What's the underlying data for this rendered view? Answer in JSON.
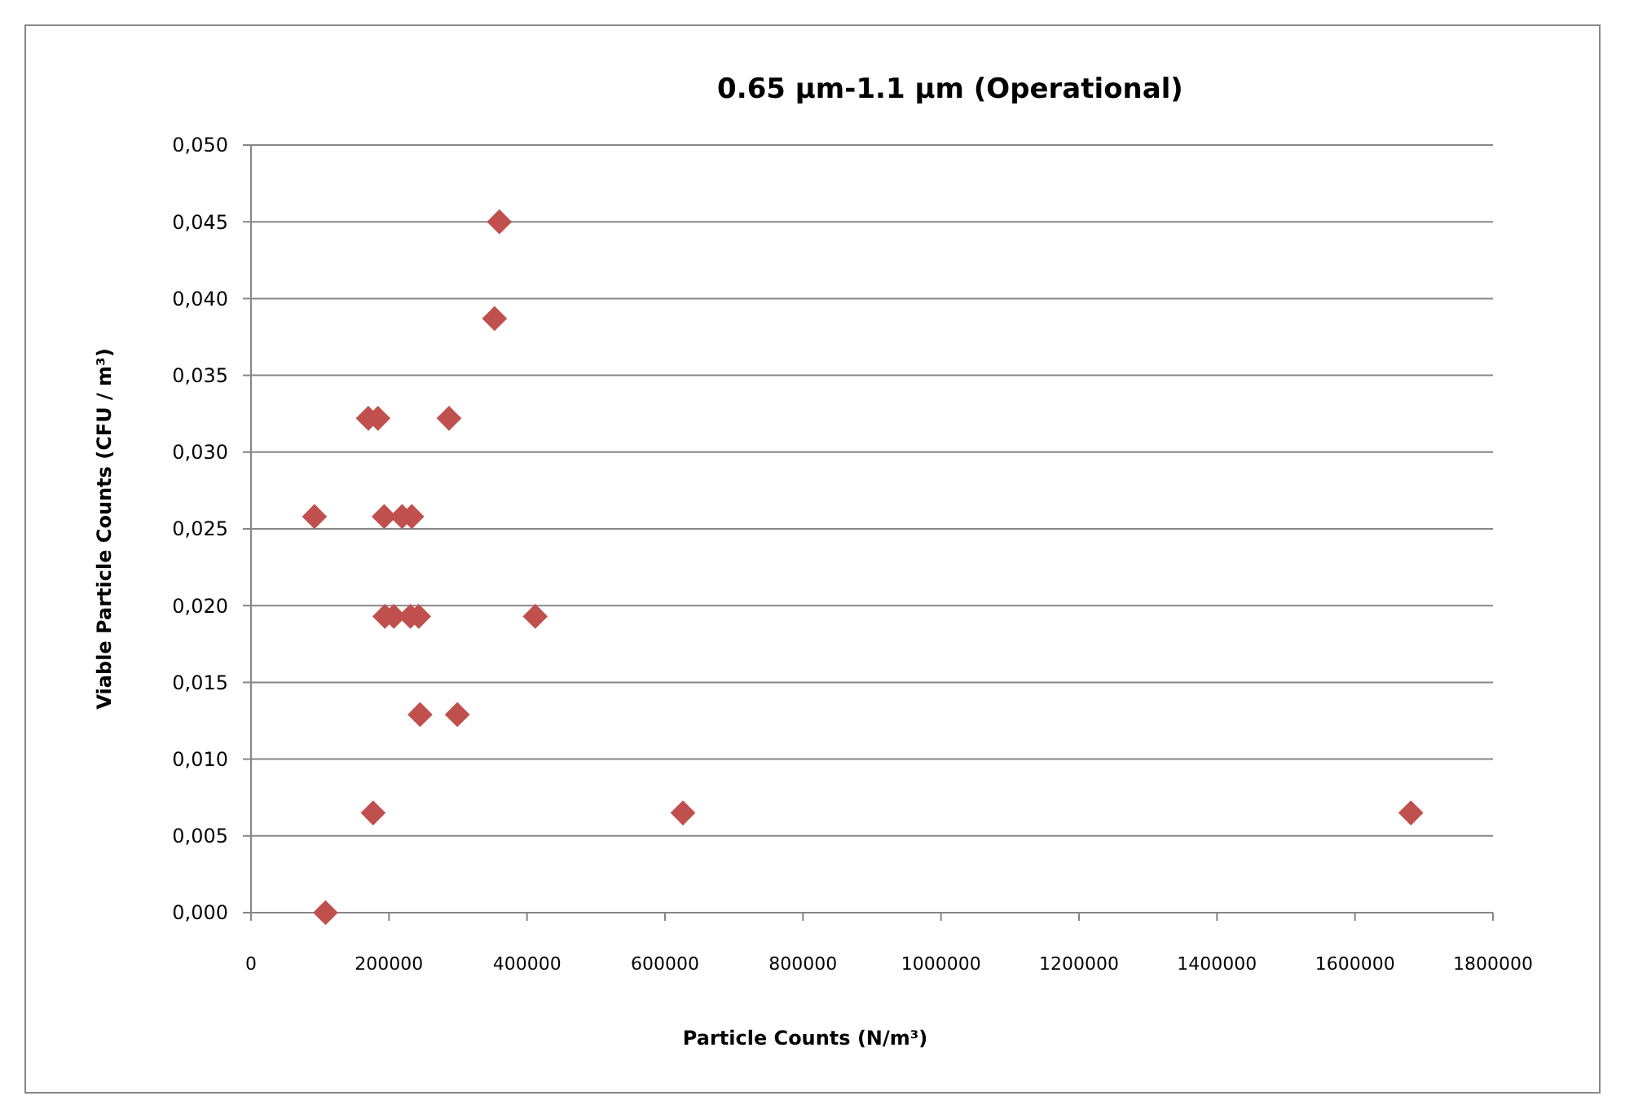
{
  "chart_data": {
    "type": "scatter",
    "title": "0.65 µm-1.1 µm (Operational)",
    "xlabel": "Particle Counts (N/m³)",
    "ylabel": "Viable Particle Counts (CFU / m³)",
    "series": [
      {
        "color": "#c0504d",
        "x": [
          92000,
          108000,
          177000,
          170000,
          184000,
          287000,
          193000,
          219000,
          360000,
          353000,
          194000,
          207000,
          231000,
          243000,
          412000,
          245000,
          299000,
          626000,
          1681000,
          233000
        ],
        "values": [
          0.0258,
          0,
          0.0065,
          0.0322,
          0.0322,
          0.0322,
          0.0258,
          0.0258,
          0.045,
          0.0387,
          0.0193,
          0.0193,
          0.0193,
          0.0193,
          0.0193,
          0.0129,
          0.0129,
          0.0065,
          0.0065,
          0.0258
        ]
      }
    ],
    "xlim": [
      0,
      1800000
    ],
    "xticks": [
      0,
      200000,
      400000,
      600000,
      800000,
      1000000,
      1200000,
      1400000,
      1600000,
      1800000
    ],
    "ylim": [
      0,
      0.05
    ],
    "yticks": [
      {
        "value": 0,
        "label": "0,000"
      },
      {
        "value": 0.005,
        "label": "0,005"
      },
      {
        "value": 0.01,
        "label": "0,010"
      },
      {
        "value": 0.015,
        "label": "0,015"
      },
      {
        "value": 0.02,
        "label": "0,020"
      },
      {
        "value": 0.025,
        "label": "0,025"
      },
      {
        "value": 0.03,
        "label": "0,030"
      },
      {
        "value": 0.035,
        "label": "0,035"
      },
      {
        "value": 0.04,
        "label": "0,040"
      },
      {
        "value": 0.045,
        "label": "0,045"
      },
      {
        "value": 0.05,
        "label": "0,050"
      }
    ],
    "grid": "y",
    "marker": "diamond"
  }
}
